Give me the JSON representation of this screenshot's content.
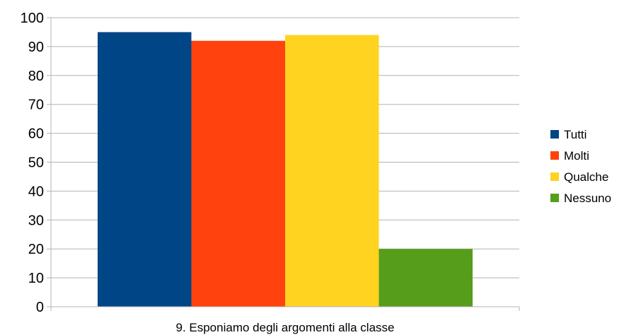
{
  "chart_data": {
    "type": "bar",
    "categories": [
      "9. Esponiamo degli argomenti alla classe"
    ],
    "series": [
      {
        "name": "Tutti",
        "values": [
          95
        ],
        "color": "#004586"
      },
      {
        "name": "Molti",
        "values": [
          92
        ],
        "color": "#ff420e"
      },
      {
        "name": "Qualche",
        "values": [
          94
        ],
        "color": "#ffd320"
      },
      {
        "name": "Nessuno",
        "values": [
          20
        ],
        "color": "#579d1c"
      }
    ],
    "ylim": [
      0,
      100
    ],
    "yticks": [
      0,
      10,
      20,
      30,
      40,
      50,
      60,
      70,
      80,
      90,
      100
    ],
    "grid": true,
    "legend_position": "right"
  }
}
